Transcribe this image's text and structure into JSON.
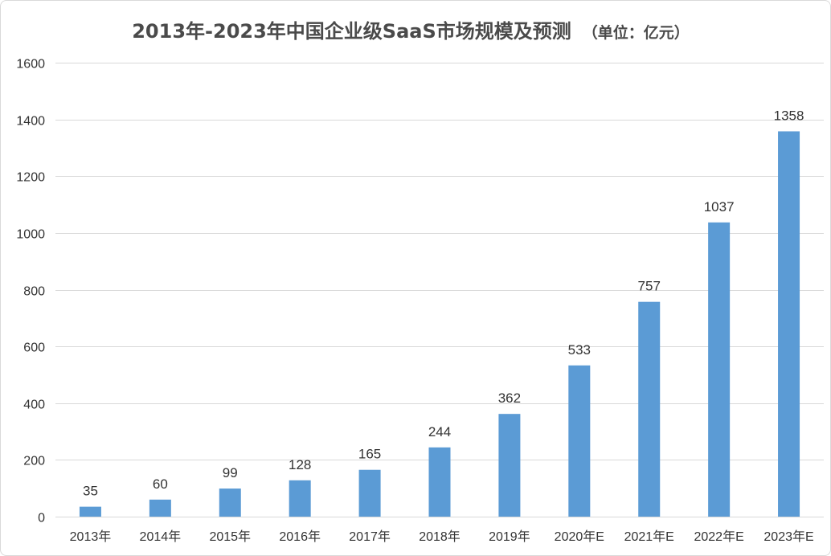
{
  "chart_data": {
    "type": "bar",
    "title": "2013年-2023年中国企业级SaaS市场规模及预测",
    "unit": "（单位：亿元）",
    "xlabel": "",
    "ylabel": "",
    "ylim": [
      0,
      1600
    ],
    "yticks": [
      0,
      200,
      400,
      600,
      800,
      1000,
      1200,
      1400,
      1600
    ],
    "grid": true,
    "legend": "none",
    "categories": [
      "2013年",
      "2014年",
      "2015年",
      "2016年",
      "2017年",
      "2018年",
      "2019年",
      "2020年E",
      "2021年E",
      "2022年E",
      "2023年E"
    ],
    "values": [
      35,
      60,
      99,
      128,
      165,
      244,
      362,
      533,
      757,
      1037,
      1358
    ],
    "bar_color": "#5b9bd5",
    "grid_color": "#d9d9d9",
    "text_color": "#333333"
  }
}
